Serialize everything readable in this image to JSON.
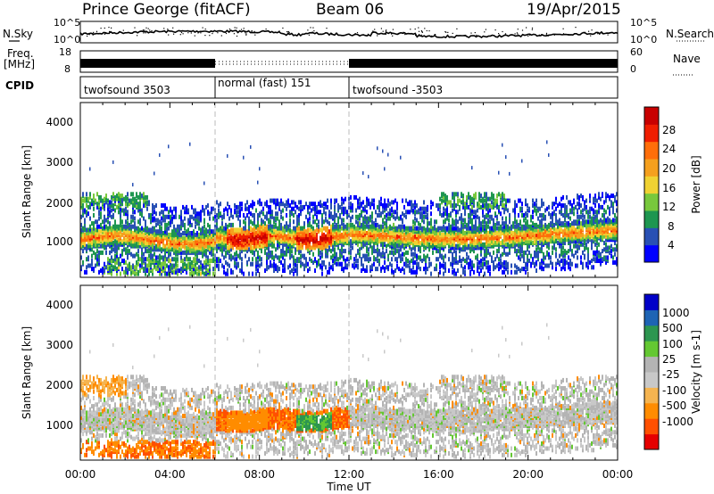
{
  "title": {
    "radar": "Prince George (fitACF)",
    "beam": "Beam 06",
    "date": "19/Apr/2015"
  },
  "labels": {
    "nsky": "N.Sky",
    "nsearch": "N.Search",
    "freq_line1": "Freq.",
    "freq_line2": "[MHz]",
    "nave": "Nave",
    "cpid": "CPID",
    "x_axis": "Time UT"
  },
  "colors": {
    "power": [
      "#0000ff",
      "#2850b4",
      "#1e9650",
      "#78c83c",
      "#f0d232",
      "#f5a01e",
      "#ff6e0a",
      "#f01e00",
      "#c80000"
    ],
    "velocity": [
      "#e60000",
      "#ff5000",
      "#ff8c00",
      "#f5b450",
      "#c8c8c8",
      "#b4b4b4",
      "#64c832",
      "#2d9650",
      "#1e64b4",
      "#0000c8"
    ],
    "guide_line": "#bbbbbb"
  },
  "chart_data": [
    {
      "type": "line",
      "name": "nsky-nsearch-panel",
      "x_range": [
        0,
        24
      ],
      "y_left_ticks": [
        "10^5",
        "10^0"
      ],
      "y_right_ticks": [
        "10^5",
        "10^0"
      ]
    },
    {
      "type": "bar",
      "name": "frequency-nave-panel",
      "x_range": [
        0,
        24
      ],
      "y_left_ticks": [
        "18",
        "8"
      ],
      "y_right_ticks": [
        "60",
        "0"
      ]
    },
    {
      "type": "table",
      "name": "cpid-panel",
      "segments": [
        {
          "label": "twofsound 3503",
          "start": 0,
          "end": 6
        },
        {
          "label": "normal (fast) 151",
          "start": 6,
          "end": 12
        },
        {
          "label": "twofsound -3503",
          "start": 12,
          "end": 24
        }
      ]
    },
    {
      "type": "heatmap",
      "name": "power-panel",
      "ylabel": "Slant Range [km]",
      "x_range": [
        0,
        24
      ],
      "y_range": [
        200,
        4500
      ],
      "y_ticks": [
        1000,
        2000,
        3000,
        4000
      ],
      "colorbar": {
        "label": "Power [dB]",
        "range": [
          0,
          32
        ],
        "ticks": [
          4,
          8,
          12,
          16,
          20,
          24,
          28
        ]
      }
    },
    {
      "type": "heatmap",
      "name": "velocity-panel",
      "ylabel": "Slant Range [km]",
      "x_range": [
        0,
        24
      ],
      "y_range": [
        200,
        4500
      ],
      "y_ticks": [
        1000,
        2000,
        3000,
        4000
      ],
      "colorbar": {
        "label": "Velocity [m s-1]",
        "ticks": [
          "-1000",
          "-500",
          "-100",
          "-25",
          "25",
          "100",
          "500",
          "1000"
        ]
      }
    }
  ],
  "x_ticks": [
    "00:00",
    "04:00",
    "08:00",
    "12:00",
    "16:00",
    "20:00",
    "00:00"
  ],
  "x_tick_hours": [
    0,
    4,
    8,
    12,
    16,
    20,
    24
  ],
  "guide_hours": [
    6,
    12
  ]
}
